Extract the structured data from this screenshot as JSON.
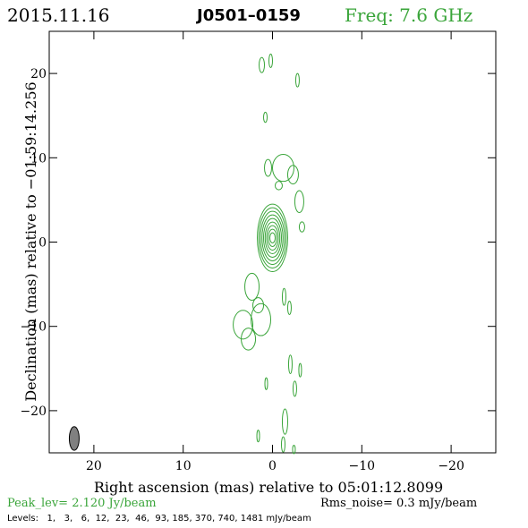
{
  "header": {
    "date": "2015.11.16",
    "source": "J0501–0159",
    "freq": "Freq: 7.6 GHz"
  },
  "colors": {
    "contour": "#3aa53a",
    "text": "#000000",
    "green_text": "#3aa53a",
    "beam_fill": "#808080"
  },
  "footer": {
    "peak": "Peak_lev=  2.120 Jy/beam",
    "rms": "Rms_noise=  0.3 mJy/beam",
    "levels": "Levels:   1,   3,   6,  12,  23,  46,  93, 185, 370, 740, 1481 mJy/beam"
  },
  "chart_data": {
    "type": "contour",
    "xlabel": "Right ascension (mas) relative to 05:01:12.8099",
    "ylabel": "Declination (mas) relative to −01:59:14.256",
    "xlim": [
      25,
      -25
    ],
    "ylim": [
      -25,
      25
    ],
    "x_ticks": [
      20,
      10,
      0,
      -10,
      -20
    ],
    "x_tick_labels": [
      "20",
      "10",
      "0",
      "−10",
      "−20"
    ],
    "y_ticks": [
      20,
      10,
      0,
      -10,
      -20
    ],
    "y_tick_labels": [
      "20",
      "10",
      "0",
      "−10",
      "−20"
    ],
    "levels_mJy_per_beam": [
      1,
      3,
      6,
      12,
      23,
      46,
      93,
      185,
      370,
      740,
      1481
    ],
    "peak_Jy_per_beam": 2.12,
    "rms_noise_mJy_per_beam": 0.3,
    "beam": {
      "x": 22.2,
      "y": -23.3,
      "major_mas": 1.4,
      "minor_mas": 0.55,
      "pa_deg": 0
    },
    "core": {
      "x": 0.0,
      "y": 0.5,
      "rx_inner": 0.3,
      "ry_inner": 0.6,
      "rx_outer": 1.7,
      "ry_outer": 4.0,
      "n_rings": 9
    },
    "features": [
      {
        "x": 1.2,
        "y": 21.0,
        "rx": 0.3,
        "ry": 0.9
      },
      {
        "x": 0.2,
        "y": 21.5,
        "rx": 0.2,
        "ry": 0.8
      },
      {
        "x": -2.8,
        "y": 19.2,
        "rx": 0.2,
        "ry": 0.8
      },
      {
        "x": 0.8,
        "y": 14.8,
        "rx": 0.2,
        "ry": 0.6
      },
      {
        "x": 0.5,
        "y": 8.8,
        "rx": 0.4,
        "ry": 1.0
      },
      {
        "x": -1.2,
        "y": 8.8,
        "rx": 1.2,
        "ry": 1.6
      },
      {
        "x": -2.3,
        "y": 8.0,
        "rx": 0.6,
        "ry": 1.1
      },
      {
        "x": -0.7,
        "y": 6.7,
        "rx": 0.4,
        "ry": 0.5
      },
      {
        "x": -3.0,
        "y": 4.8,
        "rx": 0.5,
        "ry": 1.3
      },
      {
        "x": -3.3,
        "y": 1.8,
        "rx": 0.3,
        "ry": 0.6
      },
      {
        "x": 2.3,
        "y": -5.3,
        "rx": 0.8,
        "ry": 1.6
      },
      {
        "x": 1.6,
        "y": -7.5,
        "rx": 0.6,
        "ry": 0.9
      },
      {
        "x": 1.3,
        "y": -9.2,
        "rx": 1.1,
        "ry": 1.9
      },
      {
        "x": 3.3,
        "y": -9.8,
        "rx": 1.1,
        "ry": 1.7
      },
      {
        "x": 2.7,
        "y": -11.5,
        "rx": 0.8,
        "ry": 1.3
      },
      {
        "x": -1.3,
        "y": -6.5,
        "rx": 0.2,
        "ry": 1.0
      },
      {
        "x": -1.9,
        "y": -7.8,
        "rx": 0.2,
        "ry": 0.8
      },
      {
        "x": -2.0,
        "y": -14.5,
        "rx": 0.2,
        "ry": 1.1
      },
      {
        "x": -3.1,
        "y": -15.2,
        "rx": 0.15,
        "ry": 0.8
      },
      {
        "x": 0.7,
        "y": -16.8,
        "rx": 0.15,
        "ry": 0.7
      },
      {
        "x": -2.5,
        "y": -17.4,
        "rx": 0.2,
        "ry": 0.9
      },
      {
        "x": -1.4,
        "y": -21.3,
        "rx": 0.3,
        "ry": 1.5
      },
      {
        "x": 1.6,
        "y": -23.0,
        "rx": 0.15,
        "ry": 0.7
      },
      {
        "x": -1.2,
        "y": -24.0,
        "rx": 0.2,
        "ry": 0.9
      },
      {
        "x": -2.4,
        "y": -24.6,
        "rx": 0.15,
        "ry": 0.5
      }
    ]
  }
}
